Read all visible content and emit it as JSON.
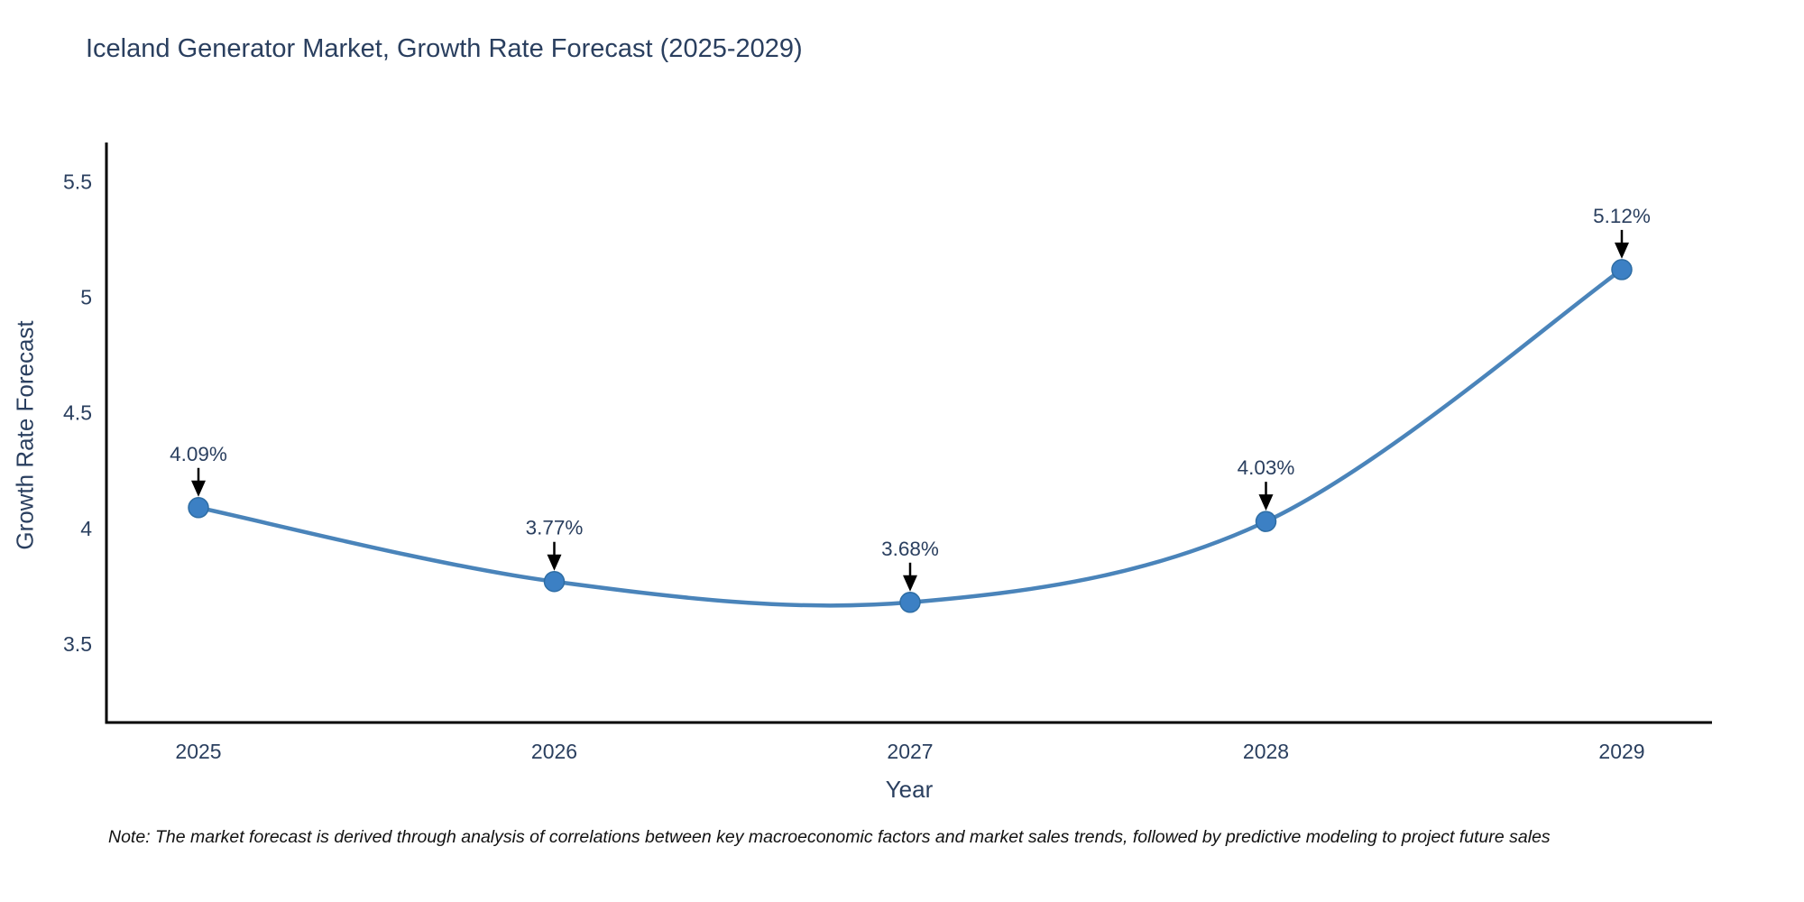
{
  "title": "Iceland Generator Market, Growth Rate Forecast (2025-2029)",
  "note": "Note: The market forecast is derived through analysis of correlations between key macroeconomic factors and market sales trends, followed by predictive modeling to project future sales",
  "chart_data": {
    "type": "line",
    "title": "Iceland Generator Market, Growth Rate Forecast (2025-2029)",
    "xlabel": "Year",
    "ylabel": "Growth Rate Forecast",
    "x": [
      2025,
      2026,
      2027,
      2028,
      2029
    ],
    "xtick_labels": [
      "2025",
      "2026",
      "2027",
      "2028",
      "2029"
    ],
    "series": [
      {
        "name": "Growth Rate Forecast",
        "values": [
          4.09,
          3.77,
          3.68,
          4.03,
          5.12
        ],
        "point_labels": [
          "4.09%",
          "3.77%",
          "3.68%",
          "4.03%",
          "5.12%"
        ]
      }
    ],
    "yticks": [
      3.5,
      4,
      4.5,
      5,
      5.5
    ],
    "ytick_labels": [
      "3.5",
      "4",
      "4.5",
      "5",
      "5.5"
    ],
    "ylim": [
      3.16,
      5.67
    ],
    "grid": false,
    "legend_position": "none",
    "line_shape": "spline",
    "colors": {
      "line": "#4a84ba",
      "marker": "#3c80c4",
      "marker_edge": "#2e6da4",
      "axis": "#000000",
      "text": "#2a3f5f",
      "annotation_arrow": "#000000",
      "note_text": "#111111",
      "background": "#ffffff"
    }
  }
}
